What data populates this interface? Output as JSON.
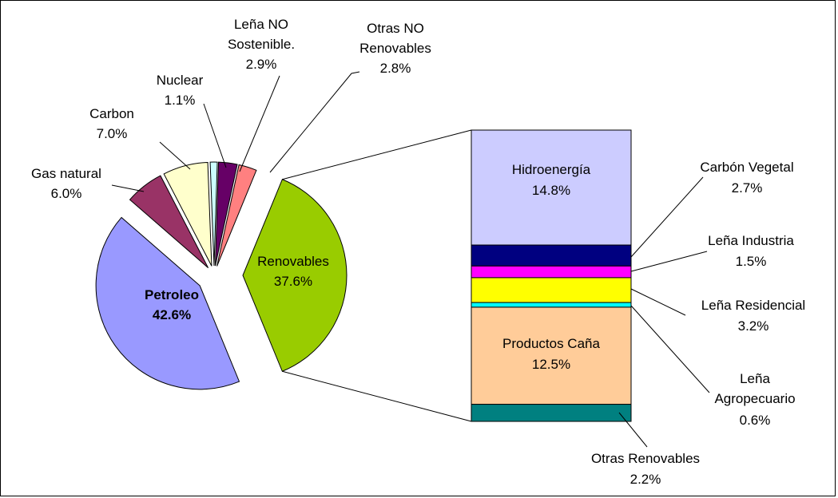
{
  "chart_data": {
    "type": "pie-of-bar",
    "categories": [
      "Petroleo",
      "Gas natural",
      "Carbon",
      "Nuclear",
      "Leña NO Sostenible.",
      "Otras NO Renovables",
      "Renovables"
    ],
    "values": [
      42.6,
      6.0,
      7.0,
      1.1,
      2.9,
      2.8,
      37.6
    ],
    "value_labels": [
      "42.6%",
      "6.0%",
      "7.0%",
      "1.1%",
      "2.9%",
      "2.8%",
      "37.6%"
    ],
    "colors": [
      "#9999ff",
      "#993366",
      "#ffffcc",
      "#ccffff",
      "#660066",
      "#ff8080",
      "#99cc00"
    ],
    "bar": {
      "categories": [
        "Hidroenergía",
        "Carbón Vegetal",
        "Leña Industria",
        "Leña Residencial",
        "Leña Agropecuario",
        "Productos Caña",
        "Otras Renovables"
      ],
      "values": [
        14.8,
        2.7,
        1.5,
        3.2,
        0.6,
        12.5,
        2.2
      ],
      "value_labels": [
        "14.8%",
        "2.7%",
        "1.5%",
        "3.2%",
        "0.6%",
        "12.5%",
        "2.2%"
      ],
      "colors": [
        "#ccccff",
        "#000080",
        "#ff00ff",
        "#ffff00",
        "#00ffff",
        "#ffcc99",
        "#008080"
      ]
    }
  }
}
